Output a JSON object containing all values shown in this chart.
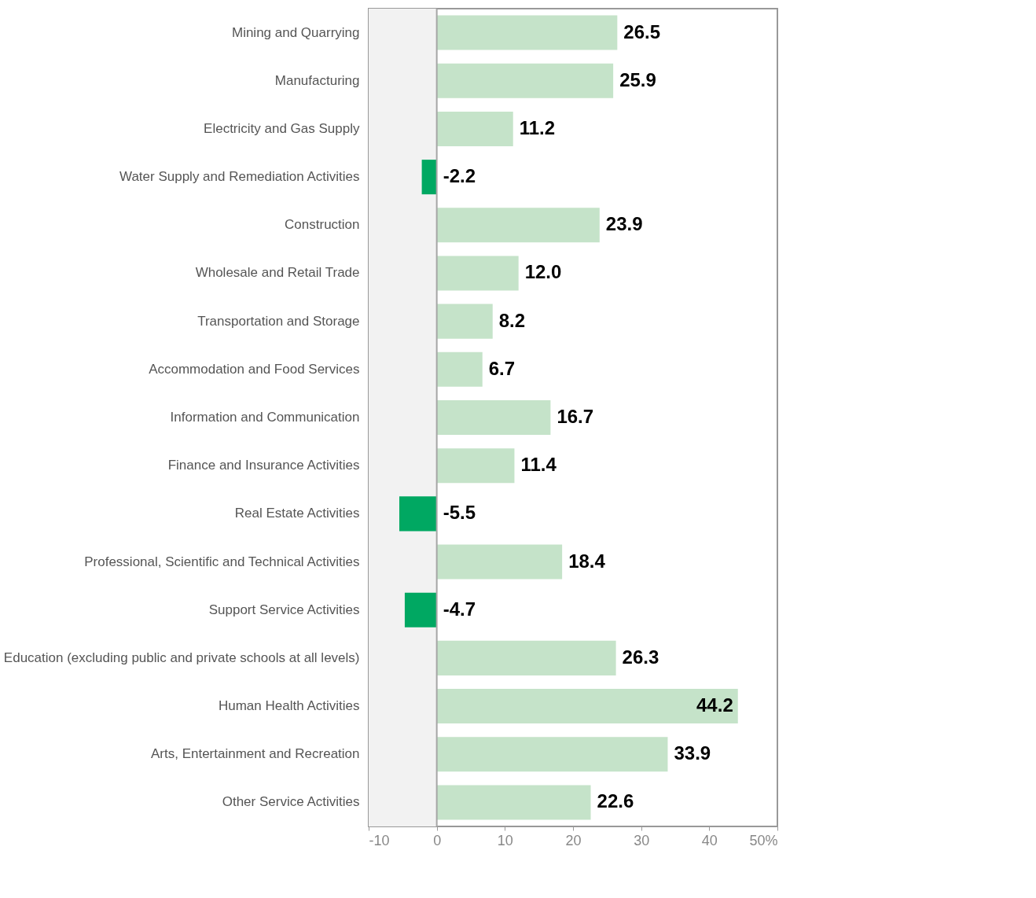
{
  "chart_data": {
    "type": "bar",
    "orientation": "horizontal",
    "categories": [
      "Mining and Quarrying",
      "Manufacturing",
      "Electricity and Gas Supply",
      "Water Supply and Remediation Activities",
      "Construction",
      "Wholesale and Retail Trade",
      "Transportation and Storage",
      "Accommodation and Food Services",
      "Information and Communication",
      "Finance and Insurance Activities",
      "Real Estate Activities",
      "Professional, Scientific and Technical Activities",
      "Support Service Activities",
      "Education (excluding public and private schools at all levels)",
      "Human Health Activities",
      "Arts, Entertainment and Recreation",
      "Other Service Activities"
    ],
    "values": [
      26.5,
      25.9,
      11.2,
      -2.2,
      23.9,
      12.0,
      8.2,
      6.7,
      16.7,
      11.4,
      -5.5,
      18.4,
      -4.7,
      26.3,
      44.2,
      33.9,
      22.6
    ],
    "value_labels": [
      "26.5",
      "25.9",
      "11.2",
      "-2.2",
      "23.9",
      "12.0",
      "8.2",
      "6.7",
      "16.7",
      "11.4",
      "-5.5",
      "18.4",
      "-4.7",
      "26.3",
      "44.2",
      "33.9",
      "22.6"
    ],
    "colors": [
      "#c5e3c9",
      "#c5e3c9",
      "#c5e3c9",
      "#00a862",
      "#c5e3c9",
      "#c5e3c9",
      "#c5e3c9",
      "#c5e3c9",
      "#c5e3c9",
      "#c5e3c9",
      "#00a862",
      "#c5e3c9",
      "#00a862",
      "#c5e3c9",
      "#c5e3c9",
      "#c5e3c9",
      "#c5e3c9"
    ],
    "xlim": [
      -10,
      50
    ],
    "xticks": [
      -10,
      0,
      10,
      20,
      30,
      40,
      {
        "value": 50,
        "label": "50%"
      }
    ],
    "bands": [
      {
        "axis": "x",
        "from": -10,
        "to": 0,
        "color": "#f2f2f2"
      }
    ],
    "ref_lines": [
      {
        "axis": "x",
        "value": 0,
        "color": "#a6a6a6"
      }
    ]
  }
}
